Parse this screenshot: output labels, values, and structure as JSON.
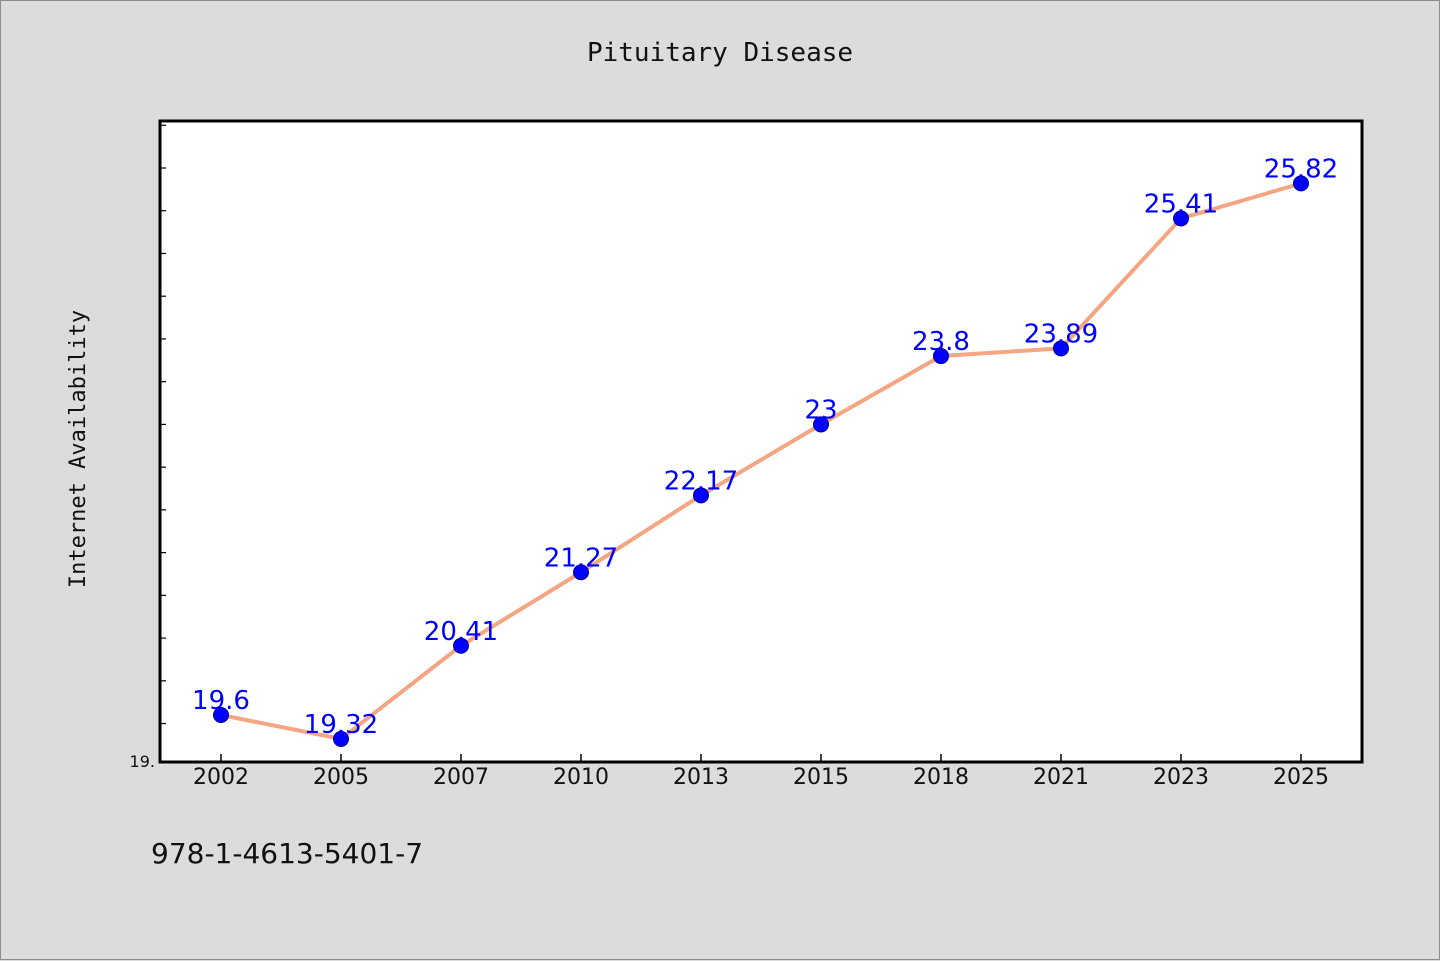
{
  "chart_data": {
    "type": "line",
    "title": "Pituitary Disease",
    "xlabel": "",
    "ylabel": "Internet Availability",
    "categories": [
      "2002",
      "2005",
      "2007",
      "2010",
      "2013",
      "2015",
      "2018",
      "2021",
      "2023",
      "2025"
    ],
    "series": [
      {
        "values": [
          19.6,
          19.32,
          20.41,
          21.27,
          22.17,
          23,
          23.8,
          23.89,
          25.41,
          25.82
        ],
        "labels": [
          "19.6",
          "19.32",
          "20.41",
          "21.27",
          "22.17",
          "23",
          "23.8",
          "23.89",
          "25.41",
          "25.82"
        ],
        "line_color": "#f4a582",
        "marker_color": "#0000ff"
      }
    ],
    "ylim": [
      19.05,
      26.55
    ],
    "ytick_label": "19.",
    "grid": false,
    "legend": "none"
  },
  "footer": {
    "isbn": "978-1-4613-5401-7"
  }
}
